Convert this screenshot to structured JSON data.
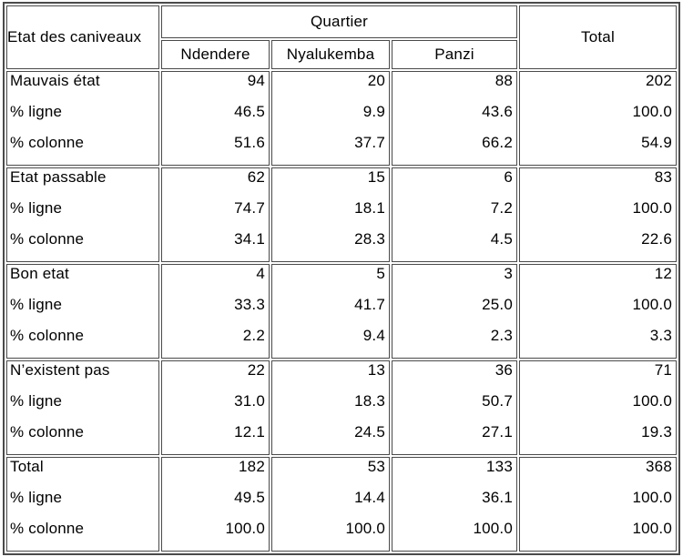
{
  "colors": {
    "background": "#ffffff",
    "text": "#000000",
    "border": "#4a4a4a"
  },
  "table": {
    "corner_header": "Etat des caniveaux",
    "group_header": "Quartier",
    "total_header": "Total",
    "quartier_columns": [
      "Ndendere",
      "Nyalukemba",
      "Panzi"
    ],
    "sub_labels": {
      "ligne": "% ligne",
      "colonne": "% colonne"
    },
    "blocks": [
      {
        "label": "Mauvais état",
        "count": [
          "94",
          "20",
          "88",
          "202"
        ],
        "pct_ligne": [
          "46.5",
          "9.9",
          "43.6",
          "100.0"
        ],
        "pct_colonne": [
          "51.6",
          "37.7",
          "66.2",
          "54.9"
        ]
      },
      {
        "label": "Etat passable",
        "count": [
          "62",
          "15",
          "6",
          "83"
        ],
        "pct_ligne": [
          "74.7",
          "18.1",
          "7.2",
          "100.0"
        ],
        "pct_colonne": [
          "34.1",
          "28.3",
          "4.5",
          "22.6"
        ]
      },
      {
        "label": "Bon etat",
        "count": [
          "4",
          "5",
          "3",
          "12"
        ],
        "pct_ligne": [
          "33.3",
          "41.7",
          "25.0",
          "100.0"
        ],
        "pct_colonne": [
          "2.2",
          "9.4",
          "2.3",
          "3.3"
        ]
      },
      {
        "label": "N’existent pas",
        "count": [
          "22",
          "13",
          "36",
          "71"
        ],
        "pct_ligne": [
          "31.0",
          "18.3",
          "50.7",
          "100.0"
        ],
        "pct_colonne": [
          "12.1",
          "24.5",
          "27.1",
          "19.3"
        ]
      },
      {
        "label": "Total",
        "count": [
          "182",
          "53",
          "133",
          "368"
        ],
        "pct_ligne": [
          "49.5",
          "14.4",
          "36.1",
          "100.0"
        ],
        "pct_colonne": [
          "100.0",
          "100.0",
          "100.0",
          "100.0"
        ]
      }
    ]
  }
}
